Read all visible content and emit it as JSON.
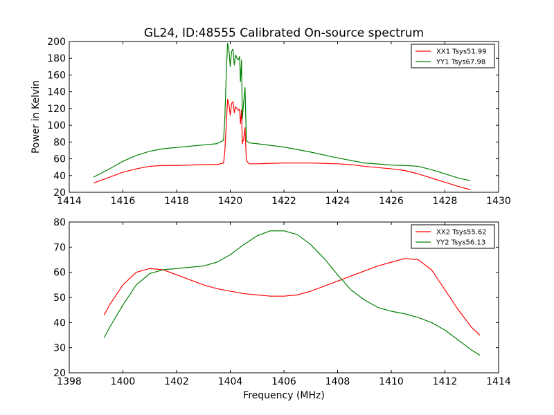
{
  "figure": {
    "title": "GL24, ID:48555 Calibrated On-source spectrum",
    "ylabel": "Power in Kelvin",
    "xlabel": "Frequency (MHz)"
  },
  "chart_data": [
    {
      "type": "line",
      "title": "GL24, ID:48555 Calibrated On-source spectrum",
      "xlabel": "",
      "ylabel": "Power in Kelvin",
      "xlim": [
        1414,
        1430
      ],
      "ylim": [
        20,
        200
      ],
      "xticks": [
        1414,
        1416,
        1418,
        1420,
        1422,
        1424,
        1426,
        1428,
        1430
      ],
      "yticks": [
        20,
        40,
        60,
        80,
        100,
        120,
        140,
        160,
        180,
        200
      ],
      "legend_position": "top-right",
      "grid": false,
      "series": [
        {
          "name": "XX1 Tsys51.99",
          "color": "#ff0000",
          "x": [
            1414.9,
            1415.5,
            1416,
            1416.5,
            1417,
            1417.5,
            1418,
            1418.5,
            1419,
            1419.5,
            1419.75,
            1419.8,
            1419.85,
            1419.9,
            1419.95,
            1420.0,
            1420.05,
            1420.1,
            1420.15,
            1420.2,
            1420.25,
            1420.3,
            1420.35,
            1420.38,
            1420.42,
            1420.45,
            1420.5,
            1420.55,
            1420.6,
            1420.7,
            1421,
            1422,
            1423,
            1424,
            1424.5,
            1425,
            1426,
            1426.5,
            1427,
            1427.5,
            1428,
            1428.5,
            1428.95
          ],
          "y": [
            31,
            38,
            44,
            48,
            51,
            52,
            52,
            52.5,
            53,
            53,
            55,
            70,
            100,
            131,
            125,
            112,
            126,
            128,
            115,
            122,
            120,
            118,
            119,
            102,
            118,
            78,
            84,
            97,
            58,
            54,
            54,
            55,
            55,
            54,
            53,
            51,
            48,
            46,
            42,
            37,
            32,
            27,
            23
          ]
        },
        {
          "name": "YY1 Tsys67.98",
          "color": "#008000",
          "x": [
            1414.9,
            1415.5,
            1416,
            1416.5,
            1417,
            1417.5,
            1418,
            1418.5,
            1419,
            1419.5,
            1419.75,
            1419.8,
            1419.85,
            1419.9,
            1419.95,
            1420.0,
            1420.05,
            1420.1,
            1420.15,
            1420.2,
            1420.25,
            1420.3,
            1420.35,
            1420.38,
            1420.42,
            1420.45,
            1420.5,
            1420.55,
            1420.6,
            1420.7,
            1421,
            1422,
            1423,
            1424,
            1424.5,
            1425,
            1426,
            1426.5,
            1427,
            1427.5,
            1428,
            1428.5,
            1428.95
          ],
          "y": [
            38,
            48,
            57,
            64,
            69,
            72,
            73.5,
            75,
            76.5,
            78,
            82,
            110,
            160,
            198,
            190,
            170,
            188,
            191,
            172,
            184,
            180,
            178,
            182,
            152,
            178,
            108,
            128,
            145,
            82,
            79,
            78,
            74,
            68,
            61,
            58,
            55,
            52.5,
            52,
            51,
            47,
            42,
            37,
            34
          ]
        }
      ]
    },
    {
      "type": "line",
      "title": "",
      "xlabel": "Frequency (MHz)",
      "ylabel": "",
      "xlim": [
        1398,
        1414
      ],
      "ylim": [
        20,
        80
      ],
      "xticks": [
        1398,
        1400,
        1402,
        1404,
        1406,
        1408,
        1410,
        1412,
        1414
      ],
      "yticks": [
        20,
        30,
        40,
        50,
        60,
        70,
        80
      ],
      "legend_position": "top-right",
      "grid": false,
      "series": [
        {
          "name": "XX2 Tsys55.62",
          "color": "#ff0000",
          "x": [
            1399.3,
            1399.5,
            1400,
            1400.5,
            1401,
            1401.5,
            1402,
            1402.5,
            1403,
            1403.5,
            1404,
            1404.5,
            1405,
            1405.5,
            1406,
            1406.5,
            1407,
            1407.5,
            1408,
            1408.5,
            1409,
            1409.5,
            1410,
            1410.5,
            1411,
            1411.5,
            1412,
            1412.5,
            1413,
            1413.3
          ],
          "y": [
            43,
            47,
            55,
            60,
            61.5,
            61,
            59,
            57,
            55,
            53.5,
            52.5,
            51.5,
            51,
            50.5,
            50.5,
            51,
            52.5,
            54.5,
            56.5,
            58.5,
            60.5,
            62.5,
            64,
            65.5,
            65,
            61,
            53,
            45,
            38,
            35
          ]
        },
        {
          "name": "YY2 Tsys56.13",
          "color": "#008000",
          "x": [
            1399.3,
            1399.5,
            1400,
            1400.5,
            1401,
            1401.5,
            1402,
            1402.5,
            1403,
            1403.5,
            1404,
            1404.5,
            1405,
            1405.5,
            1406,
            1406.5,
            1407,
            1407.5,
            1408,
            1408.5,
            1409,
            1409.5,
            1410,
            1410.5,
            1411,
            1411.5,
            1412,
            1412.5,
            1413,
            1413.3
          ],
          "y": [
            34,
            38,
            47,
            55,
            59.5,
            61,
            61.5,
            62,
            62.5,
            64,
            67,
            71,
            74.5,
            76.5,
            76.5,
            75,
            71,
            65.5,
            59,
            53,
            49,
            46,
            44.5,
            43.5,
            42,
            40,
            37,
            33,
            29,
            27
          ]
        }
      ]
    }
  ]
}
